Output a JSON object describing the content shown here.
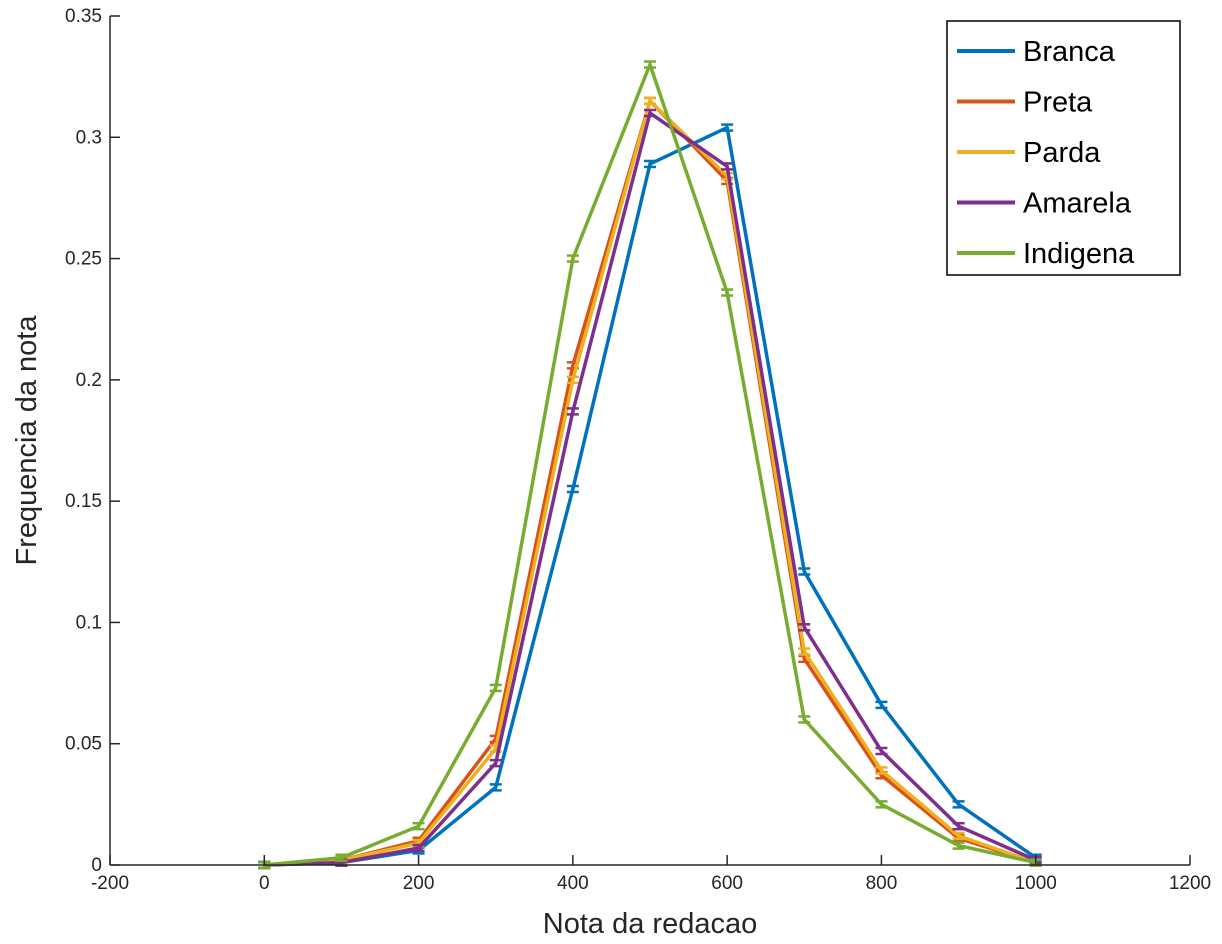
{
  "chart_data": {
    "type": "line",
    "title": "",
    "xlabel": "Nota da redacao",
    "ylabel": "Frequencia da nota",
    "xlim": [
      -200,
      1200
    ],
    "ylim": [
      0,
      0.35
    ],
    "xticks": [
      -200,
      0,
      200,
      400,
      600,
      800,
      1000,
      1200
    ],
    "xtick_labels": [
      "-200",
      "0",
      "200",
      "400",
      "600",
      "800",
      "1000",
      "1200"
    ],
    "yticks": [
      0,
      0.05,
      0.1,
      0.15,
      0.2,
      0.25,
      0.3,
      0.35
    ],
    "ytick_labels": [
      "0",
      "0.05",
      "0.1",
      "0.15",
      "0.2",
      "0.25",
      "0.3",
      "0.35"
    ],
    "grid": false,
    "legend_position": "top-right",
    "x": [
      0,
      100,
      200,
      300,
      400,
      500,
      600,
      700,
      800,
      900,
      1000
    ],
    "series": [
      {
        "name": "Branca",
        "color": "#0072BD",
        "values": [
          0,
          0.001,
          0.006,
          0.032,
          0.155,
          0.289,
          0.304,
          0.121,
          0.066,
          0.025,
          0.003
        ]
      },
      {
        "name": "Preta",
        "color": "#D95319",
        "values": [
          0,
          0.002,
          0.01,
          0.052,
          0.206,
          0.315,
          0.282,
          0.085,
          0.037,
          0.011,
          0.001
        ]
      },
      {
        "name": "Parda",
        "color": "#EDB120",
        "values": [
          0,
          0.002,
          0.009,
          0.048,
          0.2,
          0.315,
          0.284,
          0.088,
          0.039,
          0.012,
          0.001
        ]
      },
      {
        "name": "Amarela",
        "color": "#7E2F8E",
        "values": [
          0,
          0.001,
          0.007,
          0.042,
          0.187,
          0.31,
          0.288,
          0.098,
          0.047,
          0.016,
          0.002
        ]
      },
      {
        "name": "Indigena",
        "color": "#77AC30",
        "values": [
          0,
          0.003,
          0.016,
          0.073,
          0.25,
          0.33,
          0.236,
          0.06,
          0.025,
          0.008,
          0.001
        ]
      }
    ]
  }
}
